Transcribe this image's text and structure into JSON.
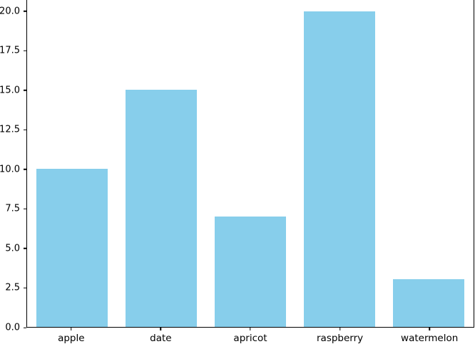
{
  "chart_data": {
    "type": "bar",
    "title": "",
    "xlabel": "",
    "ylabel": "",
    "categories": [
      "apple",
      "date",
      "apricot",
      "raspberry",
      "watermelon"
    ],
    "values": [
      10,
      15,
      7,
      20,
      3
    ],
    "yticks": [
      0.0,
      2.5,
      5.0,
      7.5,
      10.0,
      12.5,
      15.0,
      17.5,
      20.0
    ],
    "ytick_labels": [
      "0.0",
      "2.5",
      "5.0",
      "7.5",
      "10.0",
      "12.5",
      "15.0",
      "17.5",
      "20.0"
    ],
    "ylim": [
      0,
      20.7
    ],
    "bar_color": "#87CEEB",
    "background_color": "#ffffff",
    "spine_color": "#000000",
    "grid": false,
    "legend": "none"
  }
}
